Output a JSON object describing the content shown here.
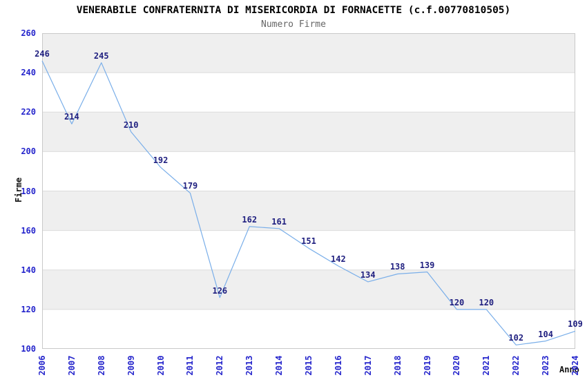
{
  "chart_data": {
    "type": "line",
    "title": "VENERABILE CONFRATERNITA DI MISERICORDIA DI FORNACETTE (c.f.00770810505)",
    "subtitle": "Numero Firme",
    "xlabel": "Anno",
    "ylabel": "Firme",
    "categories": [
      "2006",
      "2007",
      "2008",
      "2009",
      "2010",
      "2011",
      "2012",
      "2013",
      "2014",
      "2015",
      "2016",
      "2017",
      "2018",
      "2019",
      "2020",
      "2021",
      "2022",
      "2023",
      "2024"
    ],
    "values": [
      246,
      214,
      245,
      210,
      192,
      179,
      126,
      162,
      161,
      151,
      142,
      134,
      138,
      139,
      120,
      120,
      102,
      104,
      109
    ],
    "ylim": [
      100,
      260
    ],
    "ytick_step": 20,
    "grid": "horizontal",
    "banded_background": true,
    "legend": "none",
    "data_labels": "shown above each point"
  },
  "colors": {
    "background": "#ffffff",
    "line": "#79aee9",
    "band": "#efefef",
    "grid": "#dcdcdc",
    "plot_border": "#c9c9c9",
    "tick_label": "#2525cc",
    "data_label": "#202080",
    "title": "#000000",
    "subtitle": "#666666",
    "axis_label": "#111111"
  }
}
